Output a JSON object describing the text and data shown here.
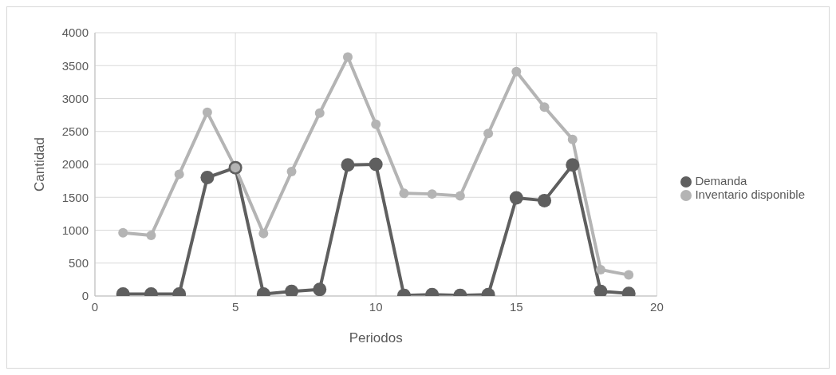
{
  "chart_data": {
    "type": "line",
    "xlabel": "Periodos",
    "ylabel": "Cantidad",
    "x": [
      1,
      2,
      3,
      4,
      5,
      6,
      7,
      8,
      9,
      10,
      11,
      12,
      13,
      14,
      15,
      16,
      17,
      18,
      19
    ],
    "series": [
      {
        "name": "Demanda",
        "color": "#5f5f5f",
        "values": [
          30,
          30,
          30,
          1800,
          1950,
          30,
          70,
          100,
          1990,
          2000,
          10,
          20,
          10,
          20,
          1490,
          1450,
          1990,
          70,
          40
        ]
      },
      {
        "name": "Inventario disponible",
        "color": "#b4b4b4",
        "values": [
          960,
          920,
          1850,
          2790,
          1950,
          950,
          1890,
          2780,
          3630,
          2610,
          1560,
          1550,
          1520,
          2470,
          3410,
          2870,
          2380,
          400,
          320
        ]
      }
    ],
    "xlim": [
      0,
      20
    ],
    "xticks": [
      0,
      5,
      10,
      15,
      20
    ],
    "ylim": [
      0,
      4000
    ],
    "yticks": [
      0,
      500,
      1000,
      1500,
      2000,
      2500,
      3000,
      3500,
      4000
    ],
    "grid": true,
    "legend": "right",
    "marker": "circle",
    "line_style": "solid"
  }
}
